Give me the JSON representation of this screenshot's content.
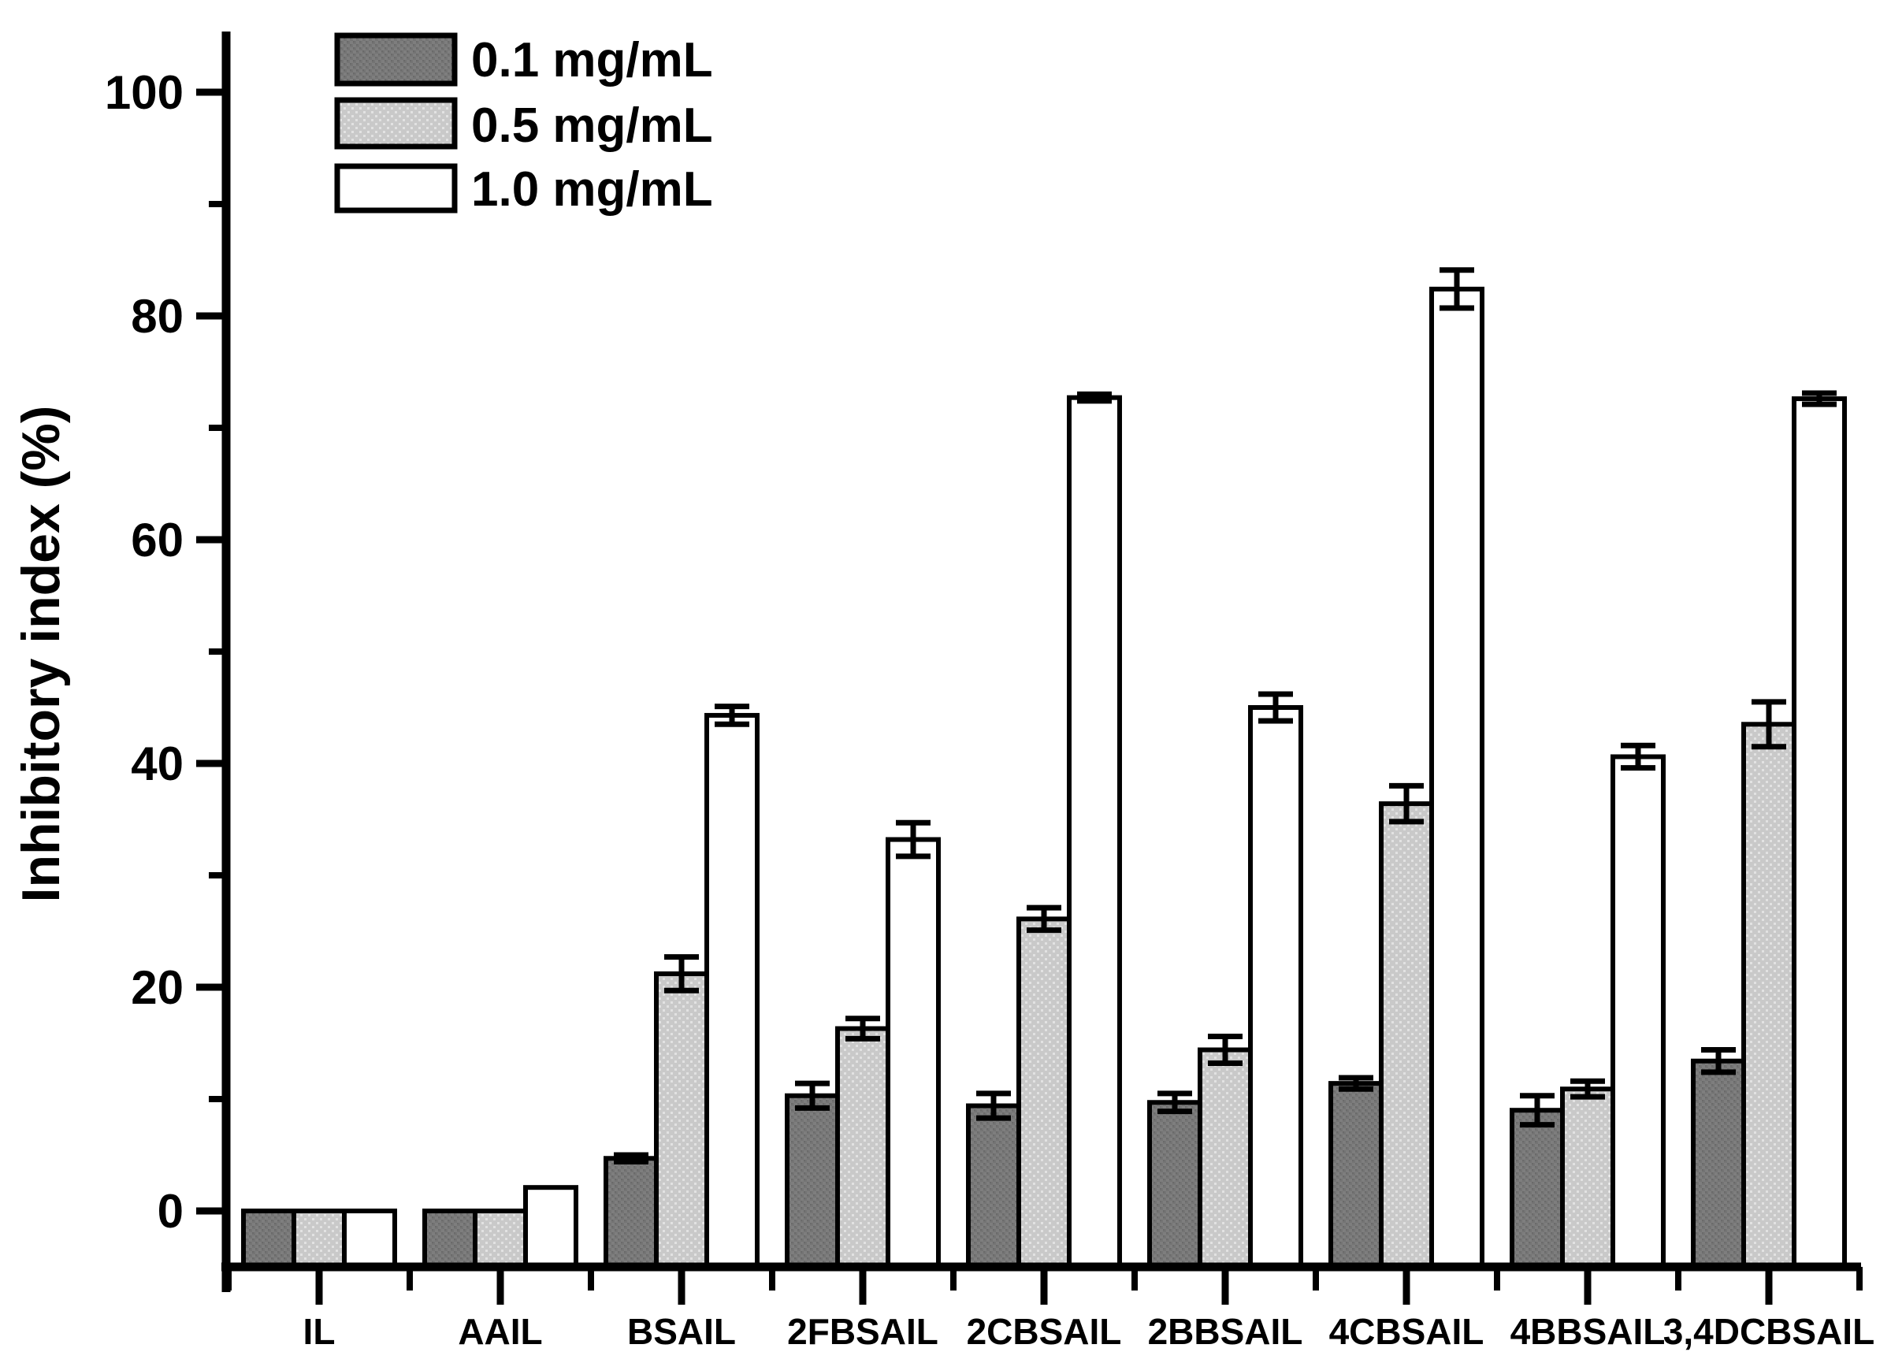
{
  "chart_data": {
    "type": "bar",
    "title": "",
    "xlabel": "",
    "ylabel": "Inhibitory index (%)",
    "ylim": [
      -5,
      105
    ],
    "yticks_major": [
      0,
      20,
      40,
      60,
      80,
      100
    ],
    "yticks_minor": [
      10,
      30,
      50,
      70,
      90
    ],
    "grid": false,
    "legend_position": "top-left-inside",
    "categories": [
      "IL",
      "AAIL",
      "BSAIL",
      "2FBSAIL",
      "2CBSAIL",
      "2BBSAIL",
      "4CBSAIL",
      "4BBSAIL",
      "3,4DCBSAIL"
    ],
    "series": [
      {
        "name": "0.1 mg/mL",
        "fill": "dark-gray-dotted",
        "color": "#747474",
        "values": [
          0,
          0,
          4.7,
          10.3,
          9.4,
          9.7,
          11.4,
          9.0,
          13.4
        ],
        "errors": [
          0,
          0,
          0.3,
          1.1,
          1.1,
          0.8,
          0.5,
          1.3,
          1.0
        ]
      },
      {
        "name": "0.5 mg/mL",
        "fill": "light-gray-dotted",
        "color": "#c9c9c9",
        "values": [
          0,
          0,
          21.2,
          16.3,
          26.1,
          14.4,
          36.4,
          10.9,
          43.5
        ],
        "errors": [
          0,
          0,
          1.5,
          0.9,
          1.0,
          1.2,
          1.6,
          0.7,
          2.0
        ]
      },
      {
        "name": "1.0 mg/mL",
        "fill": "white",
        "color": "#ffffff",
        "values": [
          0,
          2.1,
          44.3,
          33.2,
          72.7,
          45.0,
          82.4,
          40.6,
          72.6
        ],
        "errors": [
          0,
          0,
          0.8,
          1.5,
          0.3,
          1.2,
          1.7,
          1.0,
          0.5
        ]
      }
    ],
    "bar_outline_color": "#000000",
    "axis_color": "#000000",
    "error_bar_color": "#000000"
  }
}
